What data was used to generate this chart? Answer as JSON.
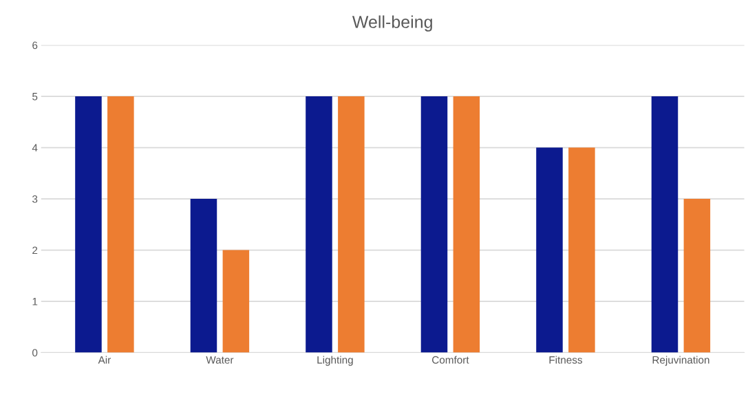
{
  "chart_data": {
    "type": "bar",
    "title": "Well-being",
    "categories": [
      "Air",
      "Water",
      "Lighting",
      "Comfort",
      "Fitness",
      "Rejuvination"
    ],
    "series": [
      {
        "color": "#0c1a8f",
        "values": [
          5,
          3,
          5,
          5,
          4,
          5
        ]
      },
      {
        "color": "#ed7d31",
        "values": [
          5,
          2,
          5,
          5,
          4,
          3
        ]
      }
    ],
    "ylim": [
      0,
      6
    ],
    "yticks": [
      0,
      1,
      2,
      3,
      4,
      5,
      6
    ],
    "grid": "y"
  }
}
